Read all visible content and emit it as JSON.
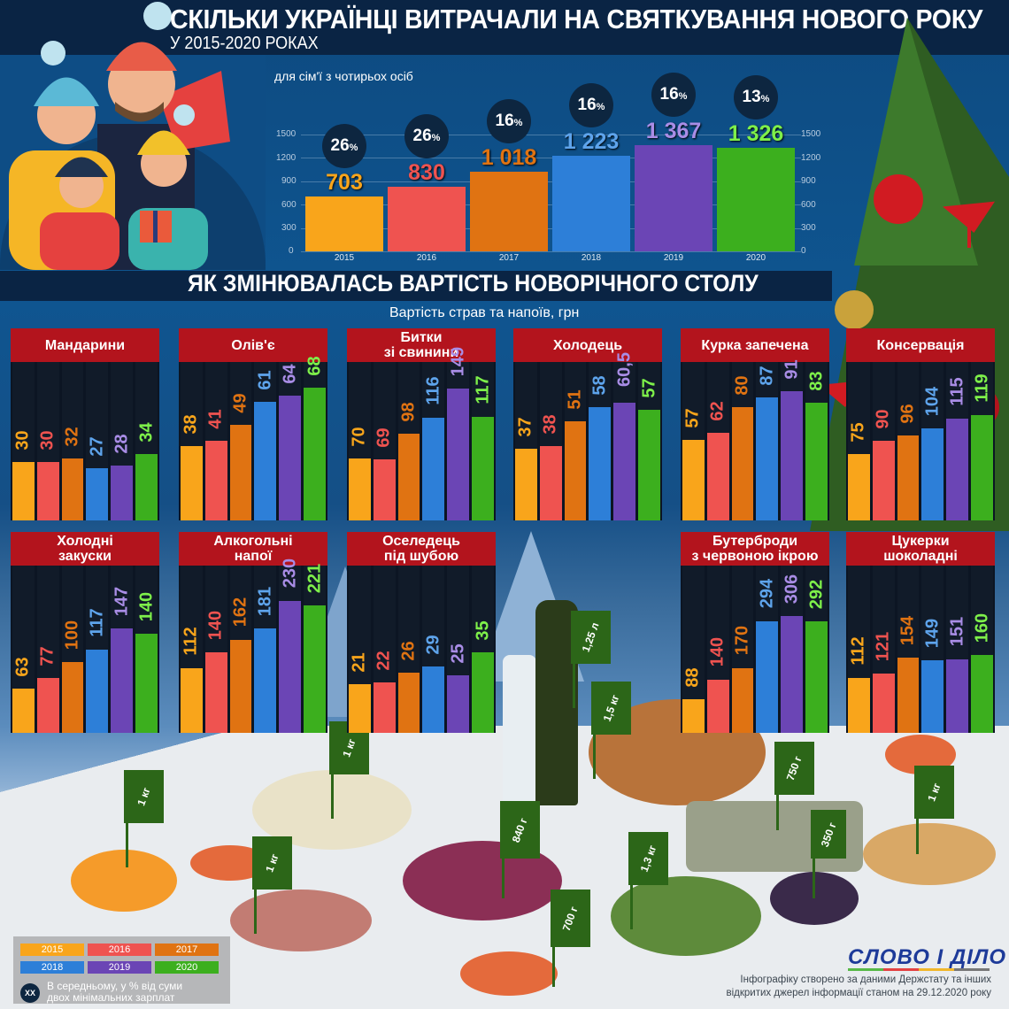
{
  "header": {
    "title": "СКІЛЬКИ УКРАЇНЦІ ВИТРАЧАЛИ НА СВЯТКУВАННЯ НОВОГО РОКУ",
    "subtitle": "У 2015-2020 РОКАХ",
    "caption": "для сім'ї з чотирьох осіб"
  },
  "colors": {
    "2015": "#f9a51b",
    "2016": "#ef5350",
    "2017": "#e07312",
    "2018": "#2d7fd8",
    "2019": "#6b45b5",
    "2020": "#3caf1e",
    "panel_header": "#b3141d",
    "circle": "#0d2640",
    "flag": "#2c6618"
  },
  "section": {
    "title": "ЯК ЗМІНЮВАЛАСЬ ВАРТІСТЬ НОВОРІЧНОГО СТОЛУ",
    "subtitle": "Вартість страв та напоїв, грн"
  },
  "chart_data": [
    {
      "type": "bar",
      "title": "Скільки українці витрачали на святкування Нового року у 2015-2020 роках",
      "subtitle": "для сім'ї з чотирьох осіб",
      "categories": [
        "2015",
        "2016",
        "2017",
        "2018",
        "2019",
        "2020"
      ],
      "values": [
        703,
        830,
        1018,
        1223,
        1367,
        1326
      ],
      "value_labels": [
        "703",
        "830",
        "1 018",
        "1 223",
        "1 367",
        "1 326"
      ],
      "annotations_pct": [
        "26%",
        "26%",
        "16%",
        "16%",
        "16%",
        "13%"
      ],
      "annotation_meaning": "В середньому, у % від суми двох мінімальних зарплат",
      "yticks": [
        0,
        300,
        600,
        900,
        1200,
        1500
      ],
      "ylim": [
        0,
        1500
      ],
      "grid": true,
      "xlabel": "",
      "ylabel": ""
    },
    {
      "type": "bar",
      "title": "Як змінювалась вартість новорічного столу",
      "subtitle": "Вартість страв та напоїв, грн",
      "categories": [
        "2015",
        "2016",
        "2017",
        "2018",
        "2019",
        "2020"
      ],
      "panels": [
        {
          "name": "Мандарини",
          "values": [
            30,
            30,
            32,
            27,
            28,
            34
          ],
          "labels": [
            "30",
            "30",
            "32",
            "27",
            "28",
            "34"
          ]
        },
        {
          "name": "Олів'є",
          "values": [
            38,
            41,
            49,
            61,
            64,
            68
          ],
          "labels": [
            "38",
            "41",
            "49",
            "61",
            "64",
            "68"
          ]
        },
        {
          "name": "Битки зі свинини",
          "values": [
            70,
            69,
            98,
            116,
            149,
            117
          ],
          "labels": [
            "70",
            "69",
            "98",
            "116",
            "149",
            "117"
          ]
        },
        {
          "name": "Холодець",
          "values": [
            37,
            38,
            51,
            58,
            60.5,
            57
          ],
          "labels": [
            "37",
            "38",
            "51",
            "58",
            "60,5",
            "57"
          ]
        },
        {
          "name": "Курка запечена",
          "values": [
            57,
            62,
            80,
            87,
            91,
            83
          ],
          "labels": [
            "57",
            "62",
            "80",
            "87",
            "91",
            "83"
          ]
        },
        {
          "name": "Консервація",
          "values": [
            75,
            90,
            96,
            104,
            115,
            119
          ],
          "labels": [
            "75",
            "90",
            "96",
            "104",
            "115",
            "119"
          ]
        },
        {
          "name": "Холодні закуски",
          "values": [
            63,
            77,
            100,
            117,
            147,
            140
          ],
          "labels": [
            "63",
            "77",
            "100",
            "117",
            "147",
            "140"
          ]
        },
        {
          "name": "Алкогольні напої",
          "values": [
            112,
            140,
            162,
            181,
            230,
            221
          ],
          "labels": [
            "112",
            "140",
            "162",
            "181",
            "230",
            "221"
          ]
        },
        {
          "name": "Оселедець під шубою",
          "values": [
            21,
            22,
            26,
            29,
            25,
            35
          ],
          "labels": [
            "21",
            "22",
            "26",
            "29",
            "25",
            "35"
          ]
        },
        {
          "name": "Бутерброди з червоною ікрою",
          "values": [
            88,
            140,
            170,
            294,
            306,
            292
          ],
          "labels": [
            "88",
            "140",
            "170",
            "294",
            "306",
            "292"
          ]
        },
        {
          "name": "Цукерки шоколадні",
          "values": [
            112,
            121,
            154,
            149,
            151,
            160
          ],
          "labels": [
            "112",
            "121",
            "154",
            "149",
            "151",
            "160"
          ]
        }
      ],
      "legend": [
        "2015",
        "2016",
        "2017",
        "2018",
        "2019",
        "2020"
      ]
    }
  ],
  "panels_ui": [
    {
      "line1": "Мандарини",
      "line2": ""
    },
    {
      "line1": "Олів'є",
      "line2": ""
    },
    {
      "line1": "Битки",
      "line2": "зі свинини"
    },
    {
      "line1": "Холодець",
      "line2": ""
    },
    {
      "line1": "Курка запечена",
      "line2": ""
    },
    {
      "line1": "Консервація",
      "line2": ""
    },
    {
      "line1": "Холодні",
      "line2": "закуски"
    },
    {
      "line1": "Алкогольні",
      "line2": "напої"
    },
    {
      "line1": "Оселедець",
      "line2": "під шубою"
    },
    {
      "line1": "Бутерброди",
      "line2": "з червоною ікрою"
    },
    {
      "line1": "Цукерки",
      "line2": "шоколадні"
    }
  ],
  "flags": [
    {
      "label": "1 кг",
      "item": "мандарини"
    },
    {
      "label": "1 кг",
      "item": "олів'є"
    },
    {
      "label": "1 кг",
      "item": "холодні закуски"
    },
    {
      "label": "840 г",
      "item": "оселедець під шубою"
    },
    {
      "label": "700 г",
      "item": "бутерброди з ікрою"
    },
    {
      "label": "1,25 л",
      "item": "алкогольні напої"
    },
    {
      "label": "1,5 кг",
      "item": "курка запечена"
    },
    {
      "label": "1,3 кг",
      "item": "консервація"
    },
    {
      "label": "750 г",
      "item": "холодець"
    },
    {
      "label": "350 г",
      "item": "цукерки"
    },
    {
      "label": "1 кг",
      "item": "битки"
    }
  ],
  "legend": {
    "years": [
      "2015",
      "2016",
      "2017",
      "2018",
      "2019",
      "2020"
    ],
    "circle_label": "XX",
    "note_line1": "В середньому, у % від суми",
    "note_line2": "двох мінімальних зарплат"
  },
  "footer": {
    "logo": "СЛОВО І ДІЛО",
    "source_line1": "Інфографіку створено за даними Держстату та інших",
    "source_line2": "відкритих джерел інформації станом на 29.12.2020 року"
  }
}
